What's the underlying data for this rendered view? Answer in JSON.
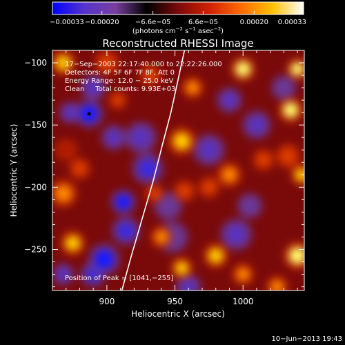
{
  "chart_data": {
    "type": "heatmap",
    "title": "Reconstructed RHESSI Image",
    "xlabel": "Heliocentric X (arcsec)",
    "ylabel": "Heliocentric Y (arcsec)",
    "xlim": [
      860,
      1045
    ],
    "ylim": [
      -283,
      -90
    ],
    "xticks": [
      900,
      950,
      1000
    ],
    "xtick_labels": [
      "900",
      "950",
      "1000"
    ],
    "yticks": [
      -100,
      -150,
      -200,
      -250
    ],
    "ytick_labels": [
      "−100",
      "−150",
      "−200",
      "−250"
    ],
    "colorbar": {
      "range": [
        -0.00033,
        0.00033
      ],
      "tick_labels": [
        "−0.00033",
        "−0.00020",
        "−6.6e−05",
        "6.6e−05",
        "0.00020",
        "0.00033"
      ],
      "unit_html": "(photons cm<tspan dy=\"-4\" font-size=\"7\">−2</tspan><tspan dy=\"4\"> s</tspan><tspan dy=\"-4\" font-size=\"7\">−1</tspan><tspan dy=\"4\"> asec</tspan><tspan dy=\"-4\" font-size=\"7\">−2</tspan><tspan dy=\"4\">)</tspan>",
      "colors": [
        "#0000ff",
        "#5533cc",
        "#7a3fa0",
        "#000000",
        "#7a0a0a",
        "#d02000",
        "#ff6a00",
        "#ffc000",
        "#ffffff"
      ]
    },
    "annotations": [
      "17−Sep−2003 22:17:40.000 to 22:22:26.000",
      "Detectors: 4F 5F 6F 7F 8F, Att 0",
      "Energy Range: 12.0 − 25.0 keV",
      "Clean     Total counts: 9.93E+03"
    ],
    "peak_label": "Position of Peak = [1041,−255]",
    "limb_curve": [
      [
        911,
        -283
      ],
      [
        918,
        -255
      ],
      [
        926,
        -225
      ],
      [
        934,
        -195
      ],
      [
        941,
        -165
      ],
      [
        947,
        -140
      ],
      [
        952,
        -115
      ],
      [
        957,
        -90
      ]
    ],
    "blobs": [
      {
        "x": 887,
        "y": -141,
        "v": -1.0,
        "s": 9
      },
      {
        "x": 890,
        "y": -120,
        "v": -0.55,
        "s": 8
      },
      {
        "x": 873,
        "y": -140,
        "v": -0.5,
        "s": 7
      },
      {
        "x": 905,
        "y": -160,
        "v": -0.55,
        "s": 8
      },
      {
        "x": 925,
        "y": -160,
        "v": -0.6,
        "s": 10
      },
      {
        "x": 930,
        "y": -185,
        "v": -0.7,
        "s": 10
      },
      {
        "x": 912,
        "y": -212,
        "v": -0.9,
        "s": 8
      },
      {
        "x": 914,
        "y": -235,
        "v": -0.7,
        "s": 9
      },
      {
        "x": 898,
        "y": -258,
        "v": -1.0,
        "s": 10
      },
      {
        "x": 890,
        "y": -270,
        "v": -0.8,
        "s": 8
      },
      {
        "x": 948,
        "y": -240,
        "v": -0.45,
        "s": 10
      },
      {
        "x": 945,
        "y": -215,
        "v": -0.35,
        "s": 9
      },
      {
        "x": 960,
        "y": -280,
        "v": -0.5,
        "s": 8
      },
      {
        "x": 995,
        "y": -238,
        "v": -0.55,
        "s": 10
      },
      {
        "x": 1005,
        "y": -215,
        "v": -0.45,
        "s": 8
      },
      {
        "x": 975,
        "y": -170,
        "v": -0.6,
        "s": 10
      },
      {
        "x": 1010,
        "y": -150,
        "v": -0.6,
        "s": 9
      },
      {
        "x": 990,
        "y": -130,
        "v": -0.5,
        "s": 8
      },
      {
        "x": 1030,
        "y": -120,
        "v": -0.4,
        "s": 8
      },
      {
        "x": 868,
        "y": -270,
        "v": -0.5,
        "s": 7
      },
      {
        "x": 868,
        "y": -100,
        "v": 0.8,
        "s": 8
      },
      {
        "x": 1000,
        "y": -105,
        "v": 0.9,
        "s": 8
      },
      {
        "x": 1040,
        "y": -105,
        "v": 1.0,
        "s": 7
      },
      {
        "x": 1035,
        "y": -138,
        "v": 0.95,
        "s": 8
      },
      {
        "x": 1043,
        "y": -190,
        "v": 0.75,
        "s": 7
      },
      {
        "x": 1040,
        "y": -255,
        "v": 1.0,
        "s": 9
      },
      {
        "x": 1025,
        "y": -280,
        "v": 0.65,
        "s": 7
      },
      {
        "x": 1033,
        "y": -175,
        "v": 0.55,
        "s": 8
      },
      {
        "x": 990,
        "y": -190,
        "v": 0.7,
        "s": 8
      },
      {
        "x": 975,
        "y": -200,
        "v": 0.55,
        "s": 7
      },
      {
        "x": 1015,
        "y": -178,
        "v": 0.5,
        "s": 7
      },
      {
        "x": 980,
        "y": -255,
        "v": 0.8,
        "s": 8
      },
      {
        "x": 1000,
        "y": -270,
        "v": 0.6,
        "s": 7
      },
      {
        "x": 955,
        "y": -163,
        "v": 0.75,
        "s": 9
      },
      {
        "x": 957,
        "y": -203,
        "v": 0.55,
        "s": 7
      },
      {
        "x": 940,
        "y": -240,
        "v": 0.6,
        "s": 7
      },
      {
        "x": 955,
        "y": -265,
        "v": 0.8,
        "s": 7
      },
      {
        "x": 963,
        "y": -120,
        "v": 0.6,
        "s": 7
      },
      {
        "x": 932,
        "y": -110,
        "v": 0.5,
        "s": 7
      },
      {
        "x": 935,
        "y": -205,
        "v": 0.45,
        "s": 6
      },
      {
        "x": 868,
        "y": -205,
        "v": 0.6,
        "s": 9
      },
      {
        "x": 880,
        "y": -185,
        "v": 0.5,
        "s": 7
      },
      {
        "x": 875,
        "y": -245,
        "v": 0.75,
        "s": 8
      },
      {
        "x": 870,
        "y": -170,
        "v": 0.4,
        "s": 7
      },
      {
        "x": 908,
        "y": -130,
        "v": 0.45,
        "s": 6
      },
      {
        "x": 900,
        "y": -100,
        "v": 0.5,
        "s": 8
      }
    ]
  },
  "footer": {
    "timestamp": "10−Jun−2013 19:43"
  }
}
